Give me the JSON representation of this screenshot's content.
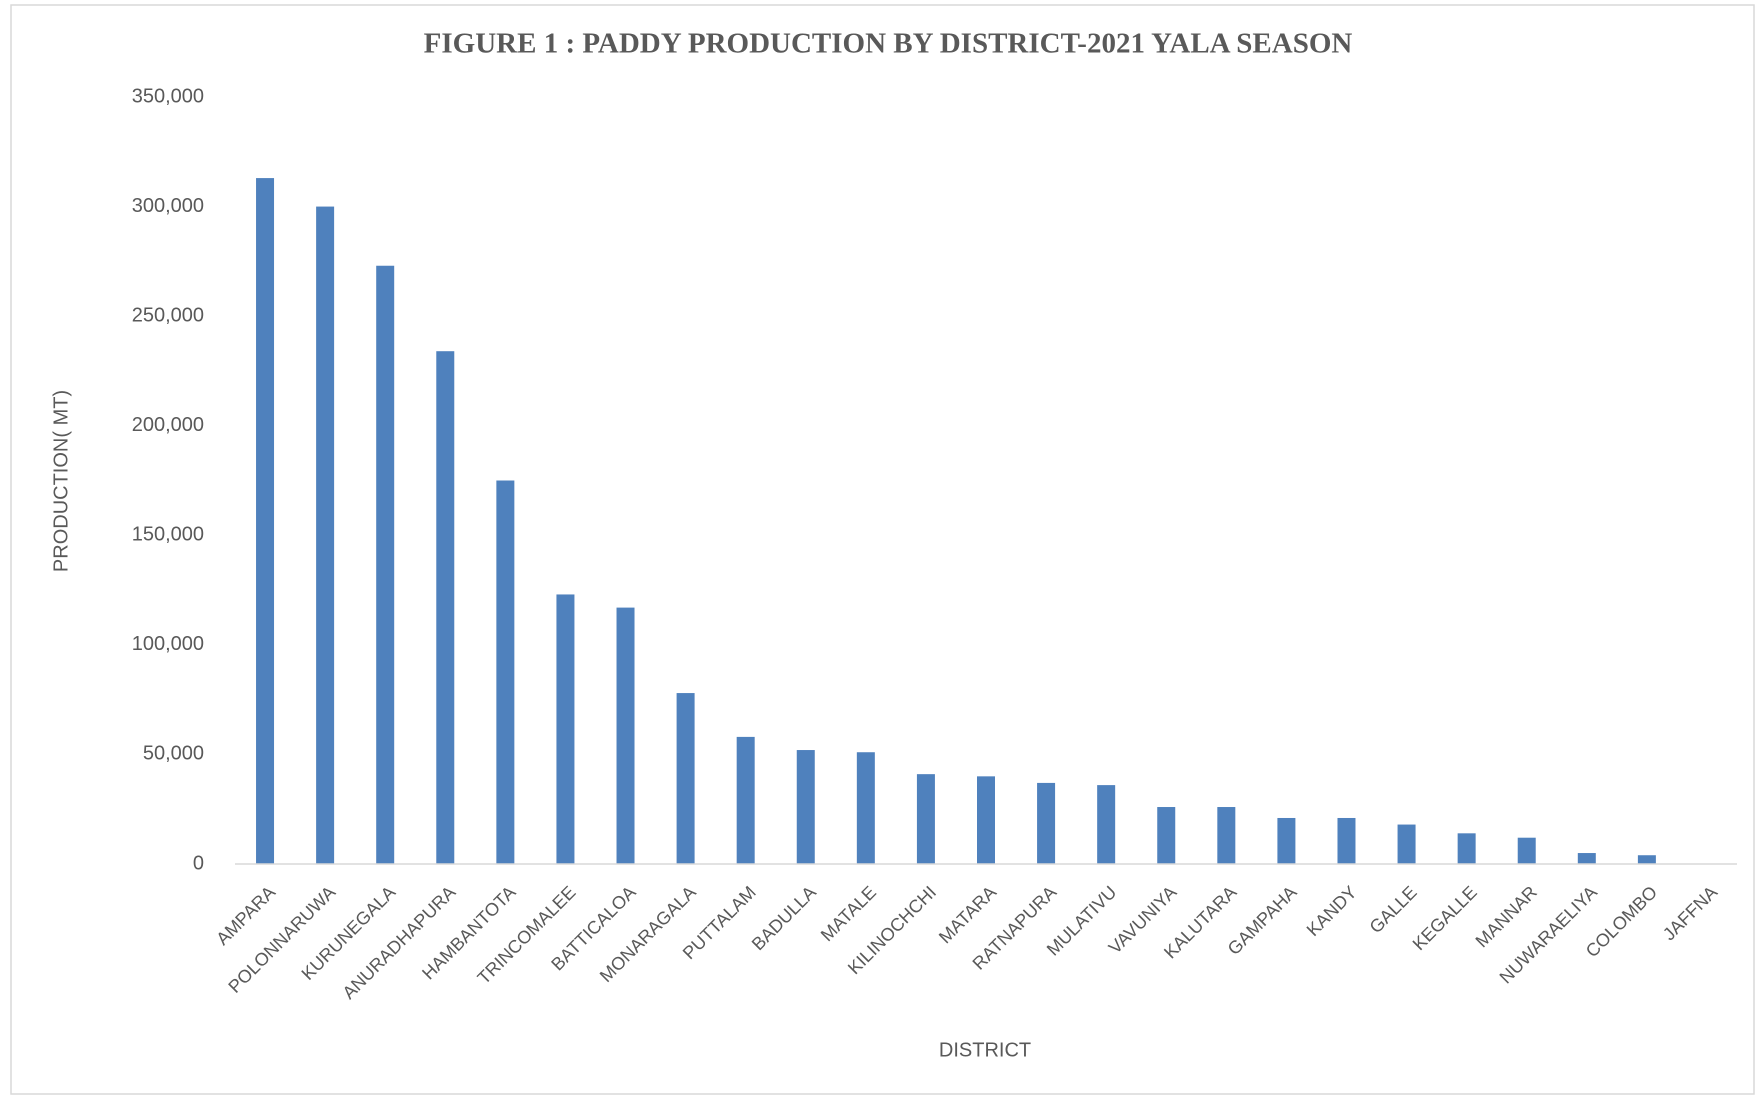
{
  "chart_data": {
    "type": "bar",
    "title": "FIGURE 1 : PADDY PRODUCTION  BY DISTRICT-2021 YALA SEASON",
    "x_label": "DISTRICT",
    "y_label": "PRODUCTION( MT)",
    "categories": [
      "AMPARA",
      "POLONNARUWA",
      "KURUNEGALA",
      "ANURADHAPURA",
      "HAMBANTOTA",
      "TRINCOMALEE",
      "BATTICALOA",
      "MONARAGALA",
      "PUTTALAM",
      "BADULLA",
      "MATALE",
      "KILINOCHCHI",
      "MATARA",
      "RATNAPURA",
      "MULATIVU",
      "VAVUNIYA",
      "KALUTARA",
      "GAMPAHA",
      "KANDY",
      "GALLE",
      "KEGALLE",
      "MANNAR",
      "NUWARAELIYA",
      "COLOMBO",
      "JAFFNA"
    ],
    "values": [
      313000,
      300000,
      273000,
      234000,
      175000,
      123000,
      117000,
      78000,
      58000,
      52000,
      51000,
      41000,
      40000,
      37000,
      36000,
      26000,
      26000,
      21000,
      21000,
      18000,
      14000,
      12000,
      5000,
      4000,
      0
    ],
    "color": "#4f81bd",
    "ylim": [
      0,
      350000
    ],
    "yticks": [
      0,
      {
        "value": 50000,
        "label": "50,000"
      },
      {
        "value": 100000,
        "label": "100,000"
      },
      {
        "value": 150000,
        "label": "150,000"
      },
      {
        "value": 200000,
        "label": "200,000"
      },
      {
        "value": 250000,
        "label": "250,000"
      },
      {
        "value": 300000,
        "label": "300,000"
      },
      {
        "value": 350000,
        "label": "350,000"
      }
    ],
    "grid": false
  }
}
